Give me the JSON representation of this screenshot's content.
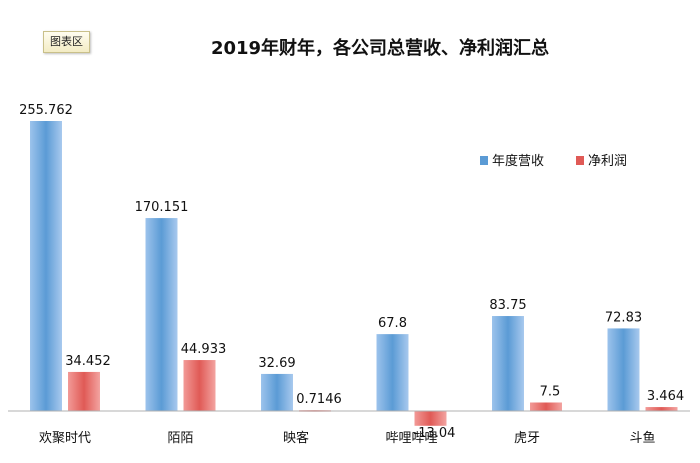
{
  "chart_area_label": "图表区",
  "chart_data": {
    "type": "bar",
    "title": "2019年财年，各公司总营收、净利润汇总",
    "categories": [
      "欢聚时代",
      "陌陌",
      "映客",
      "哔哩哔哩",
      "虎牙",
      "斗鱼"
    ],
    "series": [
      {
        "name": "年度营收",
        "values": [
          255.762,
          170.151,
          32.69,
          67.8,
          83.75,
          72.83
        ],
        "labels": [
          "255.762",
          "170.151",
          "32.69",
          "67.8",
          "83.75",
          "72.83"
        ],
        "color": "#5b9bd5"
      },
      {
        "name": "净利润",
        "values": [
          34.452,
          44.933,
          0.7146,
          -13.04,
          7.5,
          3.464
        ],
        "labels": [
          "34.452",
          "44.933",
          "0.7146",
          "-13.04",
          "7.5",
          "3.464"
        ],
        "color": "#e05a56"
      }
    ],
    "ylim": [
      -30,
      280
    ],
    "legend": "top-right",
    "grid": false
  }
}
